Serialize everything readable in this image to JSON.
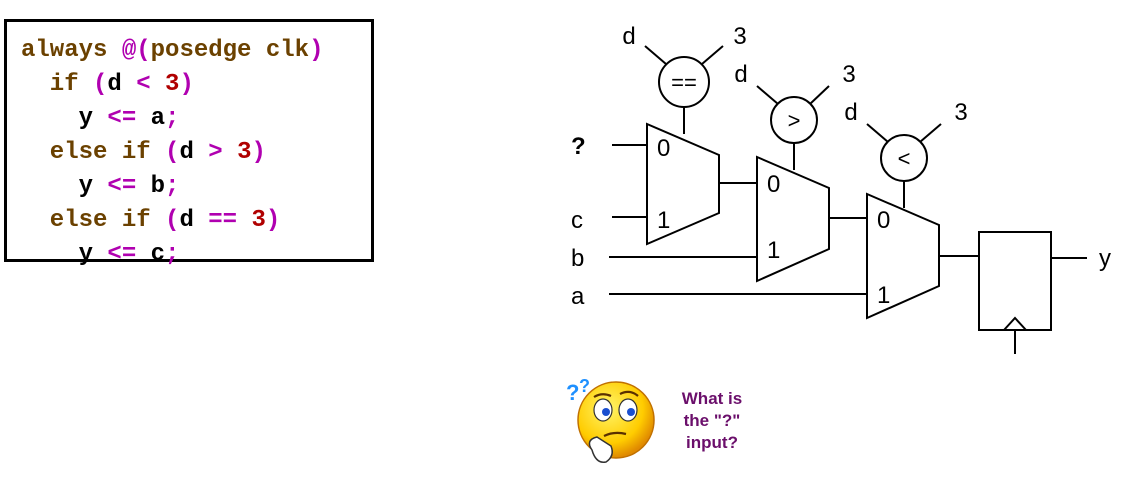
{
  "code": {
    "lines": [
      [
        {
          "t": "always ",
          "c": "kw"
        },
        {
          "t": "@(",
          "c": "op"
        },
        {
          "t": "posedge clk",
          "c": "kw"
        },
        {
          "t": ")",
          "c": "op"
        }
      ],
      [
        {
          "t": "  if ",
          "c": "kw"
        },
        {
          "t": "(",
          "c": "op"
        },
        {
          "t": "d ",
          "c": "id"
        },
        {
          "t": "< ",
          "c": "op"
        },
        {
          "t": "3",
          "c": "num"
        },
        {
          "t": ")",
          "c": "op"
        }
      ],
      [
        {
          "t": "    y ",
          "c": "id"
        },
        {
          "t": "<= ",
          "c": "op"
        },
        {
          "t": "a",
          "c": "id"
        },
        {
          "t": ";",
          "c": "op"
        }
      ],
      [
        {
          "t": "  else if ",
          "c": "kw"
        },
        {
          "t": "(",
          "c": "op"
        },
        {
          "t": "d ",
          "c": "id"
        },
        {
          "t": "> ",
          "c": "op"
        },
        {
          "t": "3",
          "c": "num"
        },
        {
          "t": ")",
          "c": "op"
        }
      ],
      [
        {
          "t": "    y ",
          "c": "id"
        },
        {
          "t": "<= ",
          "c": "op"
        },
        {
          "t": "b",
          "c": "id"
        },
        {
          "t": ";",
          "c": "op"
        }
      ],
      [
        {
          "t": "  else if ",
          "c": "kw"
        },
        {
          "t": "(",
          "c": "op"
        },
        {
          "t": "d ",
          "c": "id"
        },
        {
          "t": "== ",
          "c": "op"
        },
        {
          "t": "3",
          "c": "num"
        },
        {
          "t": ")",
          "c": "op"
        }
      ],
      [
        {
          "t": "    y ",
          "c": "id"
        },
        {
          "t": "<= ",
          "c": "op"
        },
        {
          "t": "c",
          "c": "id"
        },
        {
          "t": ";",
          "c": "op"
        }
      ]
    ],
    "colors": {
      "kw": "#6b4100",
      "op": "#b000b0",
      "num": "#b00000",
      "id": "#000000"
    }
  },
  "circuit": {
    "inputs": {
      "q": "?",
      "c": "c",
      "b": "b",
      "a": "a"
    },
    "output": "y",
    "comparators": [
      {
        "op": "==",
        "left": "d",
        "right": "3"
      },
      {
        "op": ">",
        "left": "d",
        "right": "3"
      },
      {
        "op": "<",
        "left": "d",
        "right": "3"
      }
    ],
    "mux_labels": [
      {
        "zero": "0",
        "one": "1"
      },
      {
        "zero": "0",
        "one": "1"
      },
      {
        "zero": "0",
        "one": "1"
      }
    ]
  },
  "question": {
    "lines": [
      "What is",
      "the \"?\"",
      "input?"
    ]
  },
  "icons": [
    "confused-smiley-icon"
  ]
}
